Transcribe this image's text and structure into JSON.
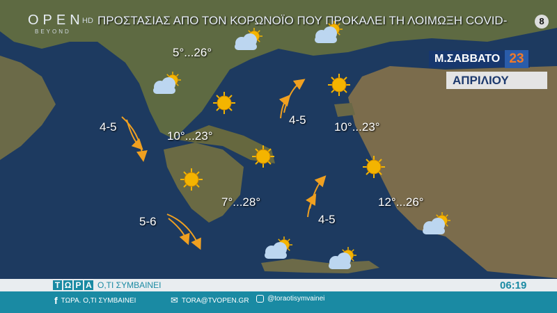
{
  "channel": {
    "logo": "OPEN",
    "logo_sub": "BEYOND",
    "hd": "HD",
    "age_rating": "8"
  },
  "ticker": "ΠΡΟΣΤΑΣΙΑΣ ΑΠΟ ΤΟΝ ΚΟΡΩΝΟΪΟ ΠΟΥ ΠΡΟΚΑΛΕΙ ΤΗ ΛΟΙΜΩΞΗ COVID-",
  "date": {
    "day": "Μ.ΣΑΒΒΑΤΟ",
    "number": "23",
    "month": "ΑΠΡΙΛΙΟΥ"
  },
  "temperatures": [
    "5°...26°",
    "10°...23°",
    "10°...23°",
    "7°...28°",
    "12°...26°"
  ],
  "winds": [
    "4-5",
    "4-5",
    "5-6",
    "4-5"
  ],
  "icons": {
    "sun": "sun-icon",
    "cloud": "partly-cloudy-icon",
    "wind": "wind-arrow-icon"
  },
  "colors": {
    "accent": "#1a8aa3",
    "sun": "#f4b400",
    "arrow": "#f0a020",
    "date_bg": "#17376e",
    "date_num": "#f07a2a"
  },
  "footer": {
    "brand": [
      "Τ",
      "Ω",
      "Ρ",
      "Α"
    ],
    "brand_sub": "Ο,ΤΙ ΣΥΜΒΑΙΝΕΙ",
    "time": "06:19",
    "facebook": "ΤΩΡΑ. Ο,ΤΙ ΣΥΜΒΑΙΝΕΙ",
    "email": "TORA@TVOPEN.GR",
    "instagram": "@toraotisymvainei"
  }
}
